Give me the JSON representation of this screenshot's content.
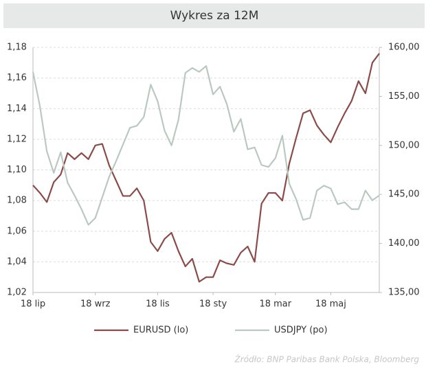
{
  "chart_data": {
    "type": "line",
    "title": "Wykres za 12M",
    "categories": [
      "18 lip",
      null,
      null,
      null,
      null,
      null,
      null,
      null,
      null,
      "18 wrz",
      null,
      null,
      null,
      null,
      null,
      null,
      null,
      null,
      "18 lis",
      null,
      null,
      null,
      null,
      null,
      null,
      null,
      "18 sty",
      null,
      null,
      null,
      null,
      null,
      null,
      null,
      null,
      "18 mar",
      null,
      null,
      null,
      null,
      null,
      null,
      null,
      "18 maj",
      null,
      null,
      null,
      null,
      null,
      null,
      null
    ],
    "series": [
      {
        "name": "EURUSD (lo)",
        "color": "#8b4a47",
        "axis": "y",
        "values": [
          1.09,
          1.085,
          1.079,
          1.092,
          1.097,
          1.111,
          1.107,
          1.111,
          1.107,
          1.116,
          1.117,
          1.103,
          1.093,
          1.083,
          1.083,
          1.088,
          1.08,
          1.053,
          1.047,
          1.055,
          1.059,
          1.047,
          1.037,
          1.042,
          1.027,
          1.03,
          1.03,
          1.041,
          1.039,
          1.038,
          1.046,
          1.05,
          1.04,
          1.078,
          1.085,
          1.085,
          1.08,
          1.104,
          1.121,
          1.137,
          1.139,
          1.129,
          1.123,
          1.118,
          1.128,
          1.137,
          1.145,
          1.158,
          1.15,
          1.17,
          1.176
        ]
      },
      {
        "name": "USDJPY (po)",
        "color": "#b9c9c0",
        "axis": "y2",
        "values": [
          157.5,
          154.0,
          149.4,
          147.2,
          149.3,
          146.2,
          144.9,
          143.5,
          141.9,
          142.6,
          144.7,
          146.8,
          148.4,
          150.1,
          151.8,
          152.0,
          152.9,
          156.2,
          154.5,
          151.5,
          150.0,
          152.6,
          157.4,
          157.9,
          157.5,
          158.1,
          155.2,
          156.0,
          154.2,
          151.4,
          152.7,
          149.6,
          149.8,
          148.0,
          147.8,
          148.7,
          151.0,
          146.1,
          144.5,
          142.4,
          142.6,
          145.4,
          145.9,
          145.6,
          144.0,
          144.2,
          143.5,
          143.5,
          145.4,
          144.4,
          144.9
        ]
      }
    ],
    "ylim": [
      1.02,
      1.18
    ],
    "yticks": [
      {
        "value": 1.02,
        "label": "1,02"
      },
      {
        "value": 1.04,
        "label": "1,04"
      },
      {
        "value": 1.06,
        "label": "1,06"
      },
      {
        "value": 1.08,
        "label": "1,08"
      },
      {
        "value": 1.1,
        "label": "1,10"
      },
      {
        "value": 1.12,
        "label": "1,12"
      },
      {
        "value": 1.14,
        "label": "1,14"
      },
      {
        "value": 1.16,
        "label": "1,16"
      },
      {
        "value": 1.18,
        "label": "1,18"
      }
    ],
    "y2lim": [
      135,
      160
    ],
    "y2ticks": [
      {
        "value": 135,
        "label": "135,00"
      },
      {
        "value": 140,
        "label": "140,00"
      },
      {
        "value": 145,
        "label": "145,00"
      },
      {
        "value": 150,
        "label": "150,00"
      },
      {
        "value": 155,
        "label": "155,00"
      },
      {
        "value": 160,
        "label": "160,00"
      }
    ],
    "grid": true,
    "source": "Źródło:  BNP Paribas Bank Polska, Bloomberg"
  }
}
